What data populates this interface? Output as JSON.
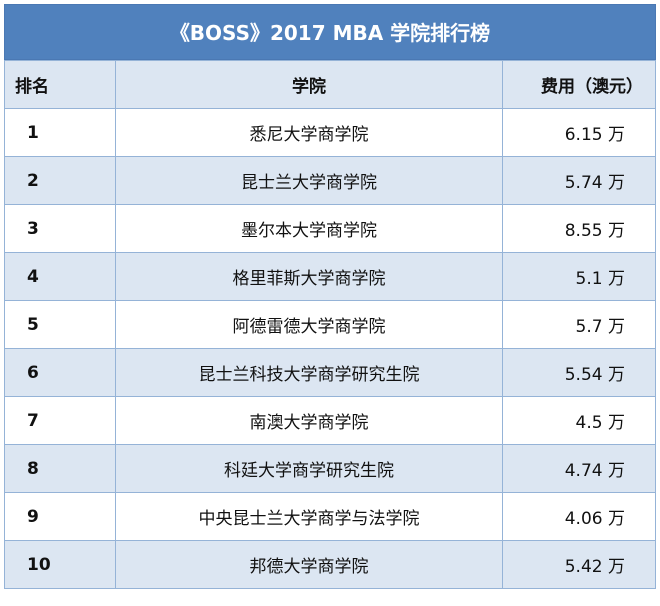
{
  "title": "《BOSS》2017 MBA 学院排行榜",
  "columns": {
    "rank": "排名",
    "school": "学院",
    "fee": "费用（澳元）"
  },
  "rows": [
    {
      "rank": "1",
      "school": "悉尼大学商学院",
      "fee": "6.15 万"
    },
    {
      "rank": "2",
      "school": "昆士兰大学商学院",
      "fee": "5.74 万"
    },
    {
      "rank": "3",
      "school": "墨尔本大学商学院",
      "fee": "8.55 万"
    },
    {
      "rank": "4",
      "school": "格里菲斯大学商学院",
      "fee": "5.1 万"
    },
    {
      "rank": "5",
      "school": "阿德雷德大学商学院",
      "fee": "5.7 万"
    },
    {
      "rank": "6",
      "school": "昆士兰科技大学商学研究生院",
      "fee": "5.54 万"
    },
    {
      "rank": "7",
      "school": "南澳大学商学院",
      "fee": "4.5 万"
    },
    {
      "rank": "8",
      "school": "科廷大学商学研究生院",
      "fee": "4.74 万"
    },
    {
      "rank": "9",
      "school": "中央昆士兰大学商学与法学院",
      "fee": "4.06 万"
    },
    {
      "rank": "10",
      "school": "邦德大学商学院",
      "fee": "5.42 万"
    }
  ]
}
